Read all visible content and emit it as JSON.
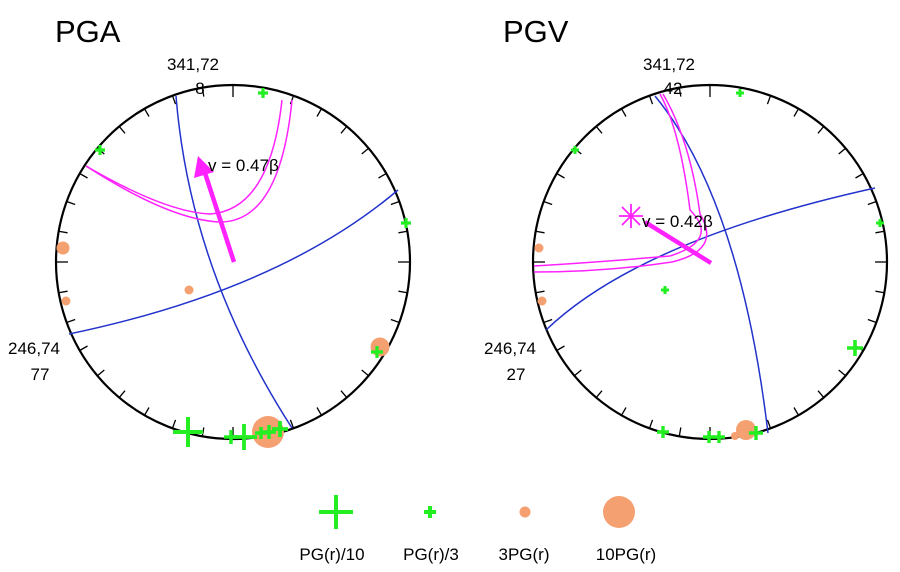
{
  "colors": {
    "green": "#22ee22",
    "orange": "#f5a070",
    "magenta": "#ff22ff",
    "blue": "#2233cc",
    "black": "#000000"
  },
  "panels": [
    {
      "title": "PGA",
      "top_label_1": "341,72",
      "top_label_2": "8",
      "left_label_1": "246,74",
      "left_label_2": "77",
      "velocity_label": "v = 0.47β"
    },
    {
      "title": "PGV",
      "top_label_1": "341,72",
      "top_label_2": "42",
      "left_label_1": "246,74",
      "left_label_2": "27",
      "velocity_label": "v = 0.42β"
    }
  ],
  "legend": [
    {
      "symbol": "large-cross",
      "label": "PG(r)/10"
    },
    {
      "symbol": "small-cross",
      "label": "PG(r)/3"
    },
    {
      "symbol": "small-dot",
      "label": "3PG(r)"
    },
    {
      "symbol": "large-dot",
      "label": "10PG(r)"
    }
  ]
}
